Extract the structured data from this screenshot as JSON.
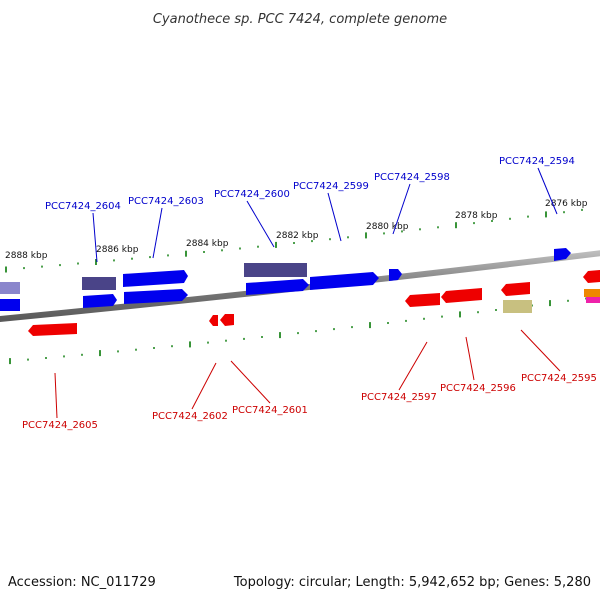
{
  "title": "Cyanothece sp. PCC 7424, complete genome",
  "footer": {
    "accession": "Accession: NC_011729",
    "summary": "Topology: circular; Length: 5,942,652 bp; Genes: 5,280"
  },
  "colors": {
    "forward_label": "#0000cc",
    "reverse_label": "#cc0000",
    "forward_gene": "#0000ee",
    "reverse_gene": "#ee0000",
    "dark_gene": "#4a4488",
    "light_purple_gene": "#8a86cc",
    "khaki_gene": "#c8c080",
    "orange_gene": "#ee8800",
    "magenta_gene": "#ee22aa",
    "backbone": "#8a8a8a",
    "tick": "#228822"
  },
  "scale_labels": [
    "2888 kbp",
    "2886 kbp",
    "2884 kbp",
    "2882 kbp",
    "2880 kbp",
    "2878 kbp",
    "2876 kbp"
  ],
  "forward_labels": [
    "PCC7424_2604",
    "PCC7424_2603",
    "PCC7424_2600",
    "PCC7424_2599",
    "PCC7424_2598",
    "PCC7424_2594"
  ],
  "reverse_labels": [
    "PCC7424_2605",
    "PCC7424_2602",
    "PCC7424_2601",
    "PCC7424_2597",
    "PCC7424_2596",
    "PCC7424_2595"
  ]
}
